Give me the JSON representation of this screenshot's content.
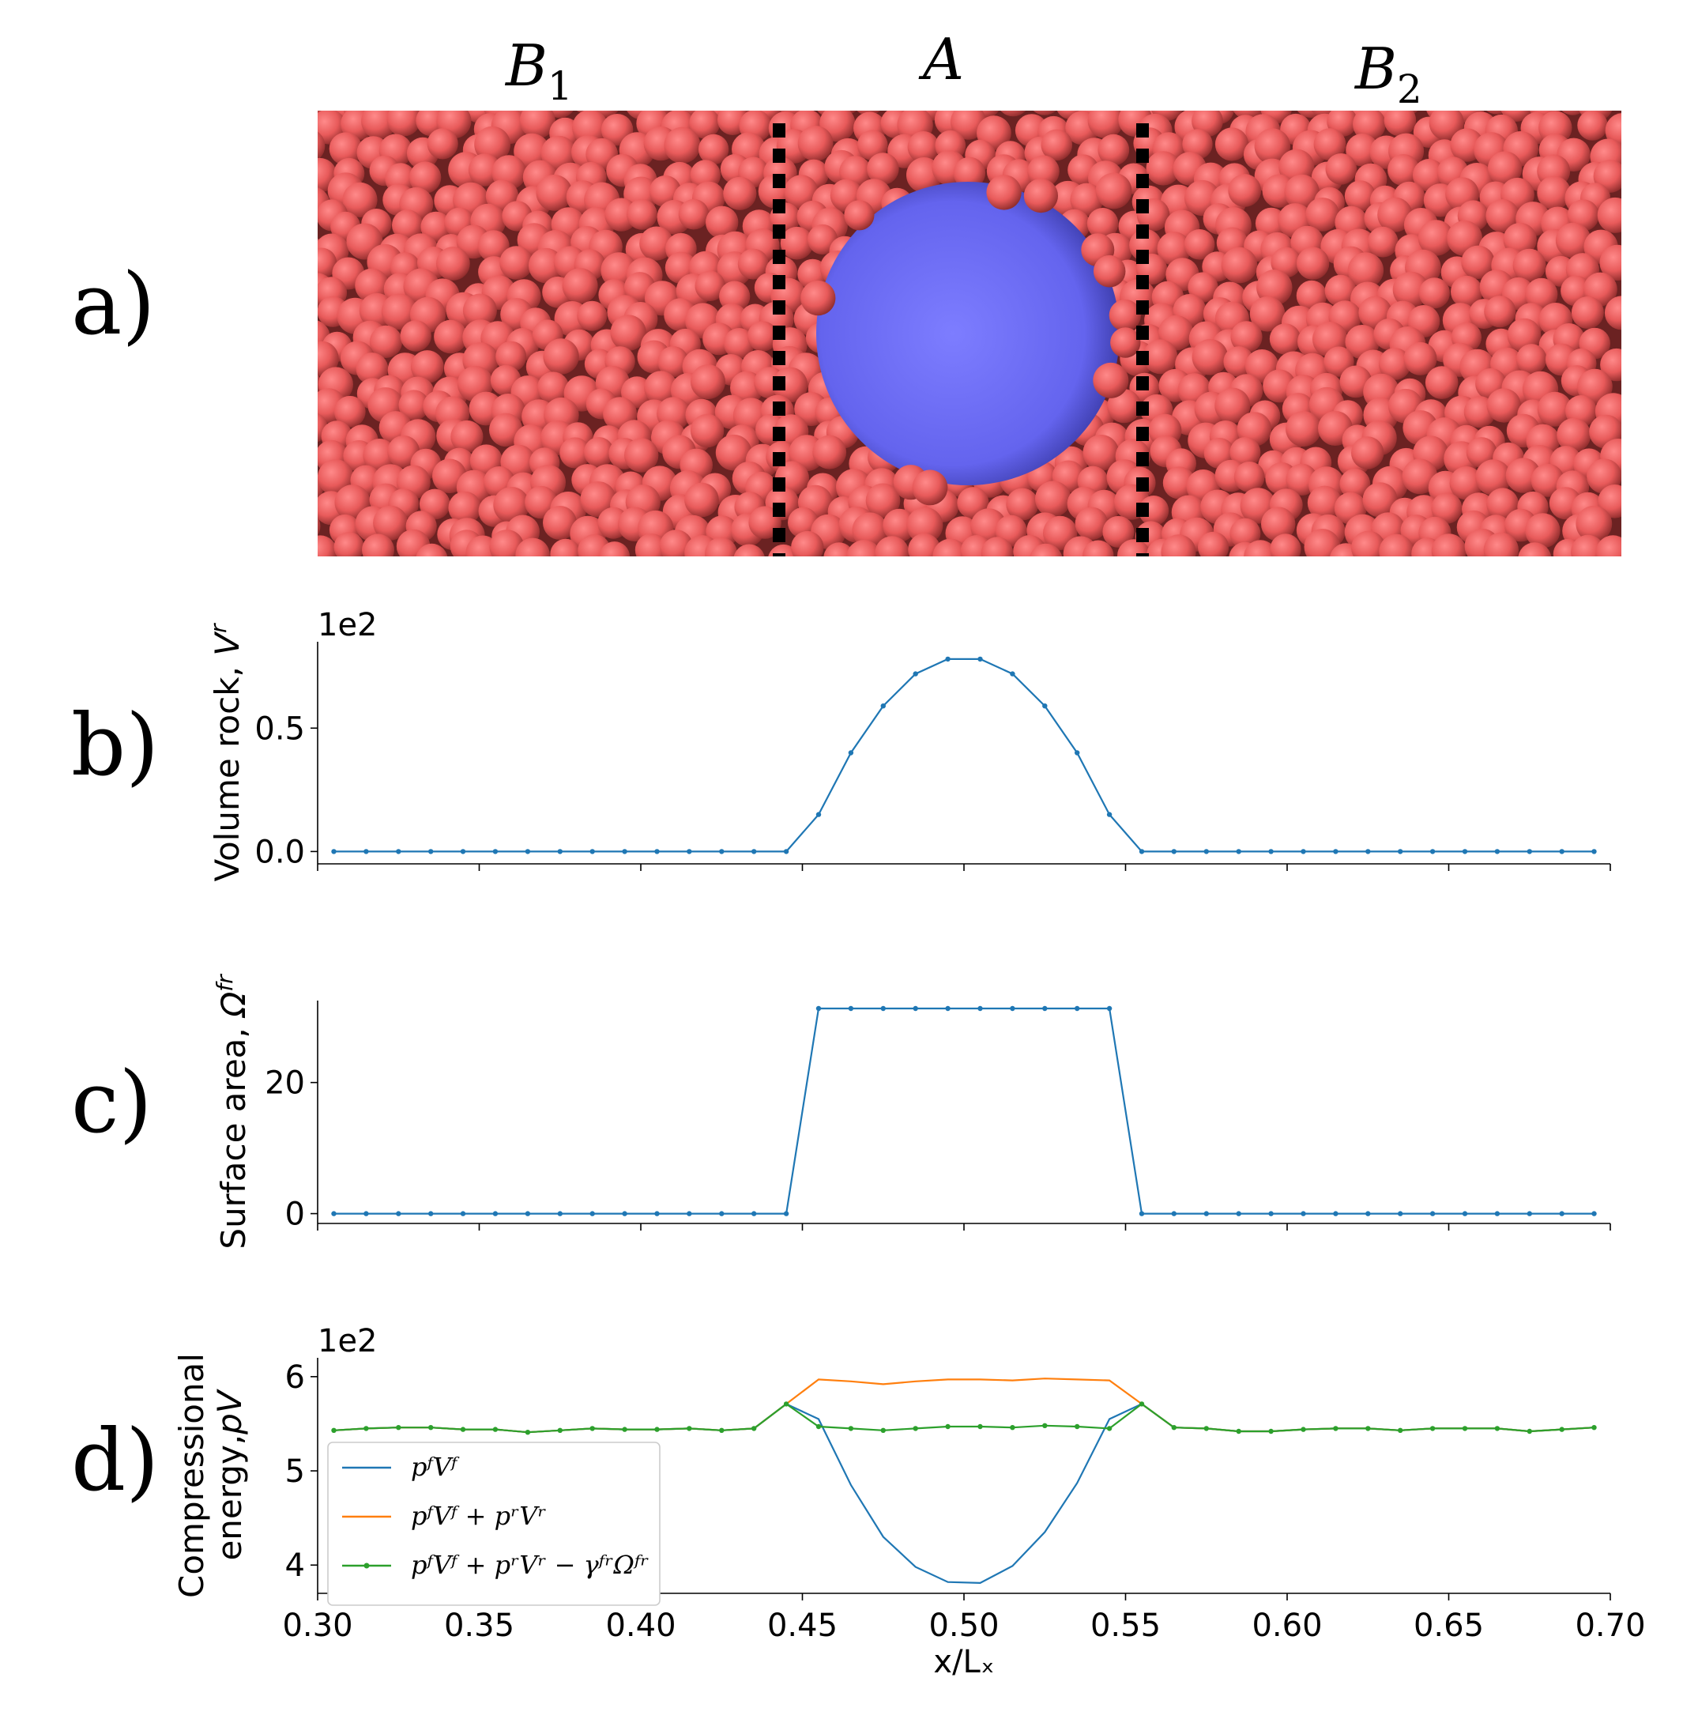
{
  "panel_labels": [
    "a)",
    "b)",
    "c)",
    "d)"
  ],
  "regions": [
    {
      "name": "B",
      "sub": "1"
    },
    {
      "name": "A",
      "sub": ""
    },
    {
      "name": "B",
      "sub": "2"
    }
  ],
  "colors": {
    "particle": "#e85a5a",
    "particle_dark": "#7a1f1f",
    "inclusion": "#6c6cf2",
    "divider": "#000000",
    "series_blue": "#1f77b4",
    "series_orange": "#ff7f0e",
    "series_green": "#2ca02c"
  },
  "chart_data": [
    {
      "type": "line",
      "panel": "b)",
      "ylabel": "Volume rock, ",
      "ylabel_sym": "V",
      "ylabel_sup": "r",
      "offset_text": "1e2",
      "xlim": [
        0.3,
        0.7
      ],
      "ylim": [
        -0.05,
        0.85
      ],
      "yticks": [
        {
          "v": 0.0,
          "label": "0.0"
        },
        {
          "v": 0.5,
          "label": "0.5"
        }
      ],
      "x": [
        0.305,
        0.315,
        0.325,
        0.335,
        0.345,
        0.355,
        0.365,
        0.375,
        0.385,
        0.395,
        0.405,
        0.415,
        0.425,
        0.435,
        0.445,
        0.455,
        0.465,
        0.475,
        0.485,
        0.495,
        0.505,
        0.515,
        0.525,
        0.535,
        0.545,
        0.555,
        0.565,
        0.575,
        0.585,
        0.595,
        0.605,
        0.615,
        0.625,
        0.635,
        0.645,
        0.655,
        0.665,
        0.675,
        0.685,
        0.695
      ],
      "series": [
        {
          "color": "#1f77b4",
          "marker": true,
          "values": [
            0,
            0,
            0,
            0,
            0,
            0,
            0,
            0,
            0,
            0,
            0,
            0,
            0,
            0,
            0,
            0.15,
            0.4,
            0.59,
            0.72,
            0.78,
            0.78,
            0.72,
            0.59,
            0.4,
            0.15,
            0,
            0,
            0,
            0,
            0,
            0,
            0,
            0,
            0,
            0,
            0,
            0,
            0,
            0,
            0
          ]
        }
      ]
    },
    {
      "type": "line",
      "panel": "c)",
      "ylabel": "Surface area, ",
      "ylabel_sym": "Ω",
      "ylabel_sup": "fr",
      "offset_text": "",
      "xlim": [
        0.3,
        0.7
      ],
      "ylim": [
        -1.5,
        32.5
      ],
      "yticks": [
        {
          "v": 0,
          "label": "0"
        },
        {
          "v": 20,
          "label": "20"
        }
      ],
      "x": [
        0.305,
        0.315,
        0.325,
        0.335,
        0.345,
        0.355,
        0.365,
        0.375,
        0.385,
        0.395,
        0.405,
        0.415,
        0.425,
        0.435,
        0.445,
        0.455,
        0.465,
        0.475,
        0.485,
        0.495,
        0.505,
        0.515,
        0.525,
        0.535,
        0.545,
        0.555,
        0.565,
        0.575,
        0.585,
        0.595,
        0.605,
        0.615,
        0.625,
        0.635,
        0.645,
        0.655,
        0.665,
        0.675,
        0.685,
        0.695
      ],
      "series": [
        {
          "color": "#1f77b4",
          "marker": true,
          "values": [
            0,
            0,
            0,
            0,
            0,
            0,
            0,
            0,
            0,
            0,
            0,
            0,
            0,
            0,
            0,
            31.3,
            31.3,
            31.3,
            31.3,
            31.3,
            31.3,
            31.3,
            31.3,
            31.3,
            31.3,
            0,
            0,
            0,
            0,
            0,
            0,
            0,
            0,
            0,
            0,
            0,
            0,
            0,
            0,
            0
          ]
        }
      ]
    },
    {
      "type": "line",
      "panel": "d)",
      "ylabel": "Compressional",
      "ylabel2": "energy,",
      "ylabel_sym": "pV",
      "offset_text": "1e2",
      "xlabel": "x/Lₓ",
      "xlim": [
        0.3,
        0.7
      ],
      "ylim": [
        3.7,
        6.2
      ],
      "yticks": [
        {
          "v": 4,
          "label": "4"
        },
        {
          "v": 5,
          "label": "5"
        },
        {
          "v": 6,
          "label": "6"
        }
      ],
      "xticks": [
        {
          "v": 0.3,
          "label": "0.30"
        },
        {
          "v": 0.35,
          "label": "0.35"
        },
        {
          "v": 0.4,
          "label": "0.40"
        },
        {
          "v": 0.45,
          "label": "0.45"
        },
        {
          "v": 0.5,
          "label": "0.50"
        },
        {
          "v": 0.55,
          "label": "0.55"
        },
        {
          "v": 0.6,
          "label": "0.60"
        },
        {
          "v": 0.65,
          "label": "0.65"
        },
        {
          "v": 0.7,
          "label": "0.70"
        }
      ],
      "legend_position": "lower-left",
      "x": [
        0.305,
        0.315,
        0.325,
        0.335,
        0.345,
        0.355,
        0.365,
        0.375,
        0.385,
        0.395,
        0.405,
        0.415,
        0.425,
        0.435,
        0.445,
        0.455,
        0.465,
        0.475,
        0.485,
        0.495,
        0.505,
        0.515,
        0.525,
        0.535,
        0.545,
        0.555,
        0.565,
        0.575,
        0.585,
        0.595,
        0.605,
        0.615,
        0.625,
        0.635,
        0.645,
        0.655,
        0.665,
        0.675,
        0.685,
        0.695
      ],
      "series": [
        {
          "name": "pᶠVᶠ",
          "color": "#1f77b4",
          "marker": false,
          "values": [
            5.43,
            5.45,
            5.46,
            5.46,
            5.44,
            5.44,
            5.41,
            5.43,
            5.45,
            5.44,
            5.44,
            5.45,
            5.43,
            5.45,
            5.71,
            5.55,
            4.85,
            4.3,
            3.98,
            3.82,
            3.81,
            3.99,
            4.35,
            4.87,
            5.55,
            5.71,
            5.46,
            5.45,
            5.42,
            5.42,
            5.44,
            5.45,
            5.45,
            5.43,
            5.45,
            5.45,
            5.45,
            5.42,
            5.44,
            5.46
          ]
        },
        {
          "name": "pᶠVᶠ + pʳVʳ",
          "color": "#ff7f0e",
          "marker": false,
          "values": [
            5.43,
            5.45,
            5.46,
            5.46,
            5.44,
            5.44,
            5.41,
            5.43,
            5.45,
            5.44,
            5.44,
            5.45,
            5.43,
            5.45,
            5.71,
            5.97,
            5.95,
            5.92,
            5.95,
            5.97,
            5.97,
            5.96,
            5.98,
            5.97,
            5.96,
            5.71,
            5.46,
            5.45,
            5.42,
            5.42,
            5.44,
            5.45,
            5.45,
            5.43,
            5.45,
            5.45,
            5.45,
            5.42,
            5.44,
            5.46
          ]
        },
        {
          "name": "pᶠVᶠ + pʳVʳ − γᶠʳΩᶠʳ",
          "color": "#2ca02c",
          "marker": true,
          "values": [
            5.43,
            5.45,
            5.46,
            5.46,
            5.44,
            5.44,
            5.41,
            5.43,
            5.45,
            5.44,
            5.44,
            5.45,
            5.43,
            5.45,
            5.71,
            5.47,
            5.45,
            5.43,
            5.45,
            5.47,
            5.47,
            5.46,
            5.48,
            5.47,
            5.45,
            5.71,
            5.46,
            5.45,
            5.42,
            5.42,
            5.44,
            5.45,
            5.45,
            5.43,
            5.45,
            5.45,
            5.45,
            5.42,
            5.44,
            5.46
          ]
        }
      ]
    }
  ]
}
